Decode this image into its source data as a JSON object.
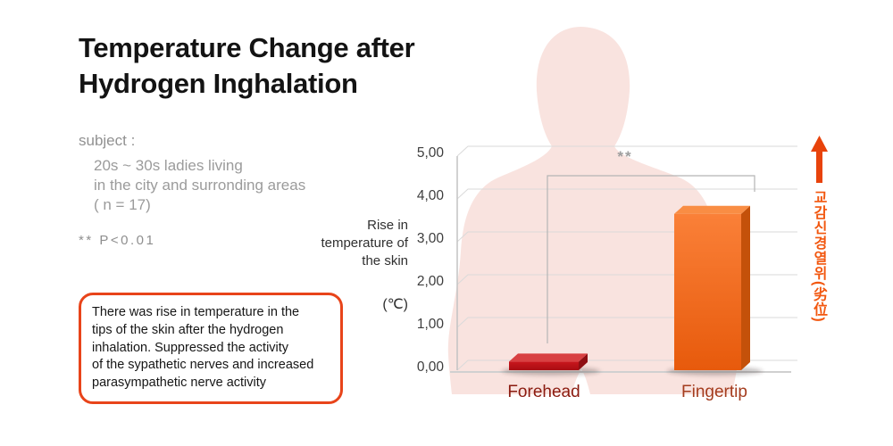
{
  "title": {
    "line1": "Temperature Change after",
    "line2": "Hydrogen Inghalation"
  },
  "subject": {
    "label": "subject :",
    "lines": [
      "20s ~ 30s ladies living",
      "in the city and surronding areas",
      "( n = 17)"
    ]
  },
  "significance_note": "** P<0.01",
  "callout": {
    "border_color": "#e8441a",
    "lines": [
      "There was rise in temperature in the",
      "tips of the skin after the hydrogen",
      "inhalation. Suppressed the activity",
      "of the sypathetic nerves and increased",
      "parasympathetic nerve activity"
    ]
  },
  "chart_data": {
    "type": "bar",
    "title": "Temperature Change after Hydrogen Inghalation",
    "categories": [
      "Forehead",
      "Fingertip"
    ],
    "values": [
      0.2,
      3.65
    ],
    "ylabel": "Rise in temperature of the skin",
    "ylabel_unit": "(℃)",
    "ylim": [
      0,
      5
    ],
    "ytick_labels": [
      "5,00",
      "4,00",
      "3,00",
      "2,00",
      "1,00",
      "0,00"
    ],
    "grid": true,
    "legend": false,
    "significance_marker": "**",
    "significance_between": [
      "Forehead",
      "Fingertip"
    ],
    "bar_colors": [
      {
        "front": [
          "#c9161d",
          "#a80d12"
        ],
        "top": "#d84042",
        "side": "#8e0e12"
      },
      {
        "front": [
          "#fa8038",
          "#e75a0c"
        ],
        "top": "#f98d44",
        "side": "#c4510a"
      }
    ],
    "category_label_colors": [
      "#8b1b10",
      "#a43c1e"
    ],
    "silhouette_color": "#f9e3df"
  },
  "side_annotation": {
    "text": "교감신경열위(劣位)",
    "color": "#f2570f",
    "arrow_direction": "up",
    "arrow_color": "#e8430b"
  }
}
